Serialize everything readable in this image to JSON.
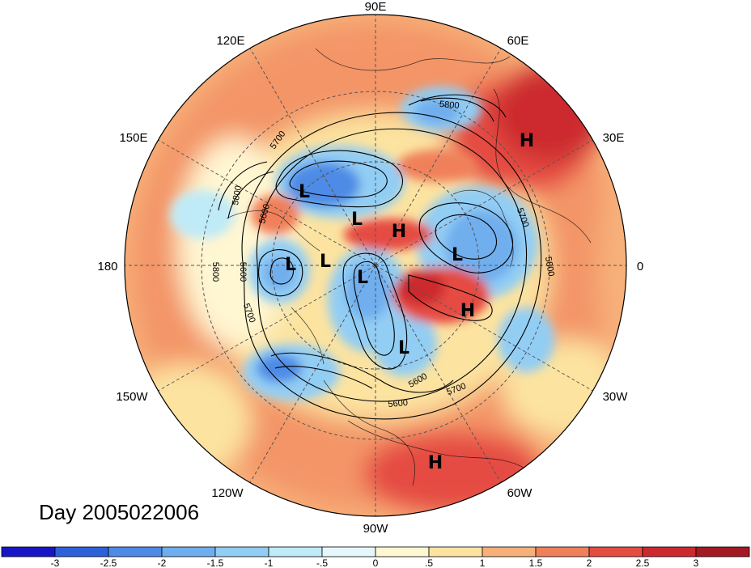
{
  "title": "Day 2005022006",
  "longitude_labels": [
    "90E",
    "60E",
    "30E",
    "0",
    "30W",
    "60W",
    "90W",
    "120W",
    "150W",
    "180",
    "150E",
    "120E"
  ],
  "contour_labels": [
    "5800",
    "5700",
    "5800",
    "5600",
    "5800",
    "5600",
    "5700",
    "5700",
    "5800",
    "5600",
    "5700",
    "5600"
  ],
  "centers": [
    {
      "type": "H"
    },
    {
      "type": "L"
    },
    {
      "type": "L"
    },
    {
      "type": "H"
    },
    {
      "type": "L"
    },
    {
      "type": "L"
    },
    {
      "type": "L"
    },
    {
      "type": "L"
    },
    {
      "type": "H"
    },
    {
      "type": "L"
    },
    {
      "type": "H"
    }
  ],
  "colorbar": {
    "ticks": [
      "-3",
      "-2.5",
      "-2",
      "-1.5",
      "-1",
      "-.5",
      "0",
      ".5",
      "1",
      "1.5",
      "2",
      "2.5",
      "3"
    ],
    "colors": [
      "#1616c8",
      "#2d61d9",
      "#4d8be6",
      "#6faeee",
      "#92cdf4",
      "#bfeaf8",
      "#e5f7fb",
      "#fff6d2",
      "#fce3a0",
      "#f7b079",
      "#f0805a",
      "#e54c42",
      "#cc2a2e",
      "#a31a22"
    ]
  },
  "colors": {
    "grid_line": "#555555",
    "contour": "#000000",
    "coast": "#111111"
  }
}
